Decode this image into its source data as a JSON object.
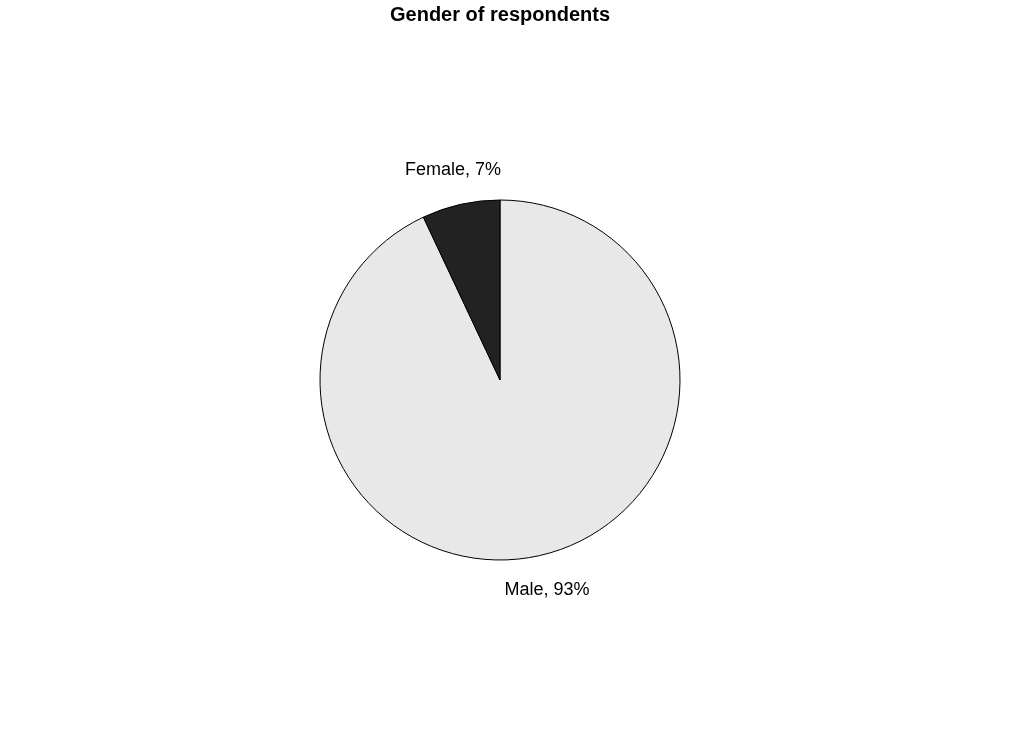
{
  "chart_data": {
    "type": "pie",
    "title": "Gender of respondents",
    "categories": [
      "Male",
      "Female"
    ],
    "values": [
      93,
      7
    ],
    "colors": [
      "#e8e8e8",
      "#222222"
    ],
    "value_labels": [
      "93%",
      "7%"
    ],
    "legend": false
  }
}
